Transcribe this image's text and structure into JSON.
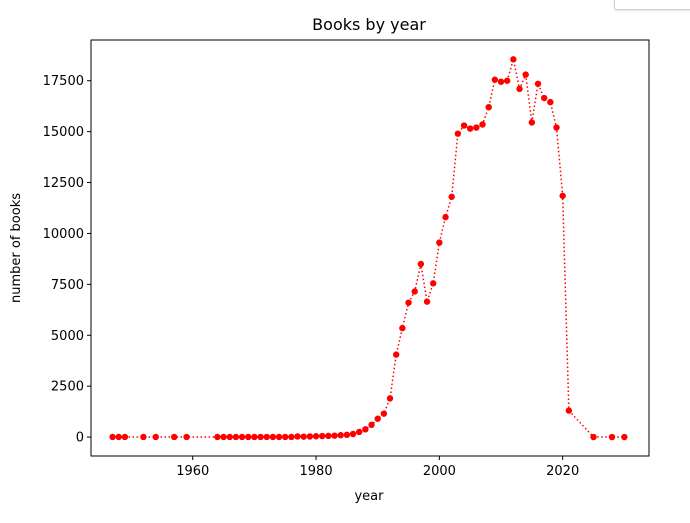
{
  "chart_data": {
    "type": "line",
    "title": "Books by year",
    "xlabel": "year",
    "ylabel": "number of books",
    "xlim": [
      1943.5,
      2034
    ],
    "ylim": [
      -930,
      19500
    ],
    "xticks": [
      1960,
      1980,
      2000,
      2020
    ],
    "yticks": [
      0,
      2500,
      5000,
      7500,
      10000,
      12500,
      15000,
      17500
    ],
    "xtick_labels": [
      "1960",
      "1980",
      "2000",
      "2020"
    ],
    "ytick_labels": [
      "0",
      "2500",
      "5000",
      "7500",
      "10000",
      "12500",
      "15000",
      "17500"
    ],
    "grid": false,
    "legend": false,
    "series": [
      {
        "color": "#ff0000",
        "line_style": "dotted",
        "marker": "circle",
        "x": [
          1947,
          1948,
          1949,
          1952,
          1954,
          1957,
          1959,
          1964,
          1965,
          1966,
          1967,
          1968,
          1969,
          1970,
          1971,
          1972,
          1973,
          1974,
          1975,
          1976,
          1977,
          1978,
          1979,
          1980,
          1981,
          1982,
          1983,
          1984,
          1985,
          1986,
          1987,
          1988,
          1989,
          1990,
          1991,
          1992,
          1993,
          1994,
          1995,
          1996,
          1997,
          1998,
          1999,
          2000,
          2001,
          2002,
          2003,
          2004,
          2005,
          2006,
          2007,
          2008,
          2009,
          2010,
          2011,
          2012,
          2013,
          2014,
          2015,
          2016,
          2017,
          2018,
          2019,
          2020,
          2021,
          2025,
          2028,
          2030
        ],
        "y": [
          5,
          5,
          5,
          5,
          5,
          5,
          5,
          5,
          5,
          5,
          5,
          5,
          5,
          5,
          5,
          5,
          5,
          5,
          5,
          5,
          30,
          20,
          30,
          40,
          50,
          60,
          70,
          90,
          110,
          150,
          250,
          380,
          600,
          900,
          1150,
          1900,
          4050,
          5350,
          6600,
          7150,
          8500,
          6650,
          7550,
          9550,
          10800,
          11800,
          14900,
          15300,
          15150,
          15200,
          15350,
          16200,
          17550,
          17450,
          17500,
          18550,
          17100,
          17800,
          15450,
          17350,
          16650,
          16450,
          15200,
          11850,
          1300,
          0,
          0,
          0
        ]
      }
    ]
  }
}
